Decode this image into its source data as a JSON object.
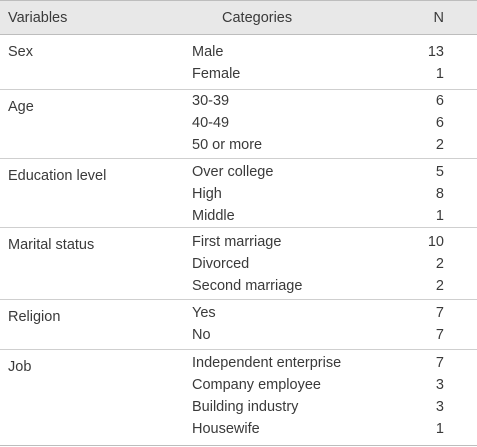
{
  "header": {
    "variables": "Variables",
    "categories": "Categories",
    "n": "N"
  },
  "groups": [
    {
      "variable": "Sex",
      "rows": [
        {
          "category": "Male",
          "n": "13"
        },
        {
          "category": "Female",
          "n": "1"
        }
      ]
    },
    {
      "variable": "Age",
      "rows": [
        {
          "category": "30-39",
          "n": "6"
        },
        {
          "category": "40-49",
          "n": "6"
        },
        {
          "category": "50 or more",
          "n": "2"
        }
      ]
    },
    {
      "variable": "Education level",
      "rows": [
        {
          "category": "Over college",
          "n": "5"
        },
        {
          "category": "High",
          "n": "8"
        },
        {
          "category": "Middle",
          "n": "1"
        }
      ]
    },
    {
      "variable": "Marital status",
      "rows": [
        {
          "category": "First marriage",
          "n": "10"
        },
        {
          "category": "Divorced",
          "n": "2"
        },
        {
          "category": "Second marriage",
          "n": "2"
        }
      ]
    },
    {
      "variable": "Religion",
      "rows": [
        {
          "category": "Yes",
          "n": "7"
        },
        {
          "category": "No",
          "n": "7"
        }
      ]
    },
    {
      "variable": "Job",
      "rows": [
        {
          "category": "Independent enterprise",
          "n": "7"
        },
        {
          "category": "Company employee",
          "n": "3"
        },
        {
          "category": "Building industry",
          "n": "3"
        },
        {
          "category": "Housewife",
          "n": "1"
        }
      ]
    }
  ]
}
